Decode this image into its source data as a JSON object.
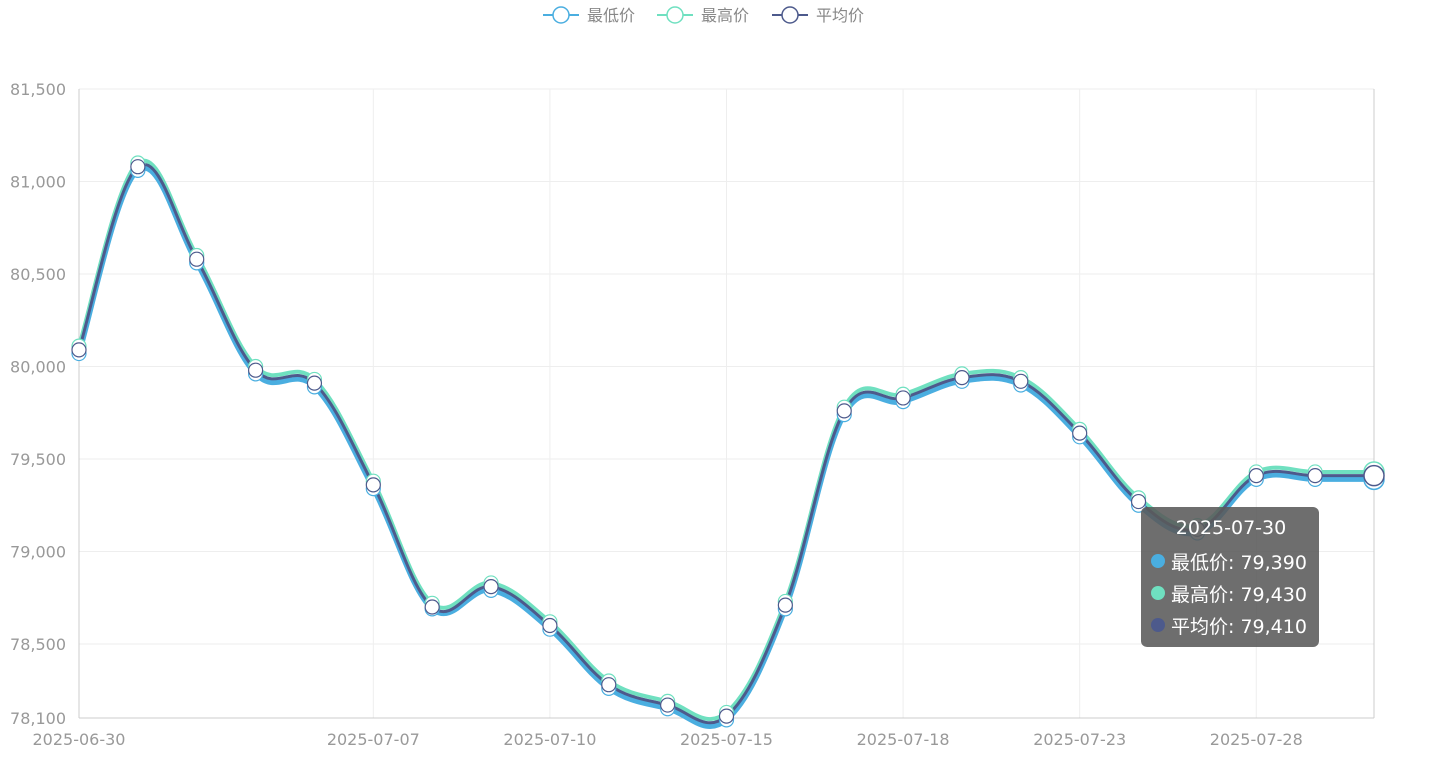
{
  "chart_data": {
    "type": "line",
    "smooth": true,
    "title": "",
    "xlabel": "",
    "ylabel": "",
    "ylim": [
      78100,
      81500
    ],
    "yticks": [
      78100,
      78500,
      79000,
      79500,
      80000,
      80500,
      81000,
      81500
    ],
    "ytick_labels": [
      "78,100",
      "78,500",
      "79,000",
      "79,500",
      "80,000",
      "80,500",
      "81,000",
      "81,500"
    ],
    "x": [
      "2025-06-30",
      "2025-07-01",
      "2025-07-02",
      "2025-07-03",
      "2025-07-04",
      "2025-07-07",
      "2025-07-08",
      "2025-07-09",
      "2025-07-10",
      "2025-07-11",
      "2025-07-14",
      "2025-07-15",
      "2025-07-16",
      "2025-07-17",
      "2025-07-18",
      "2025-07-21",
      "2025-07-22",
      "2025-07-23",
      "2025-07-24",
      "2025-07-25",
      "2025-07-28",
      "2025-07-29",
      "2025-07-30"
    ],
    "xtick_labels": [
      "2025-06-30",
      "2025-07-07",
      "2025-07-10",
      "2025-07-15",
      "2025-07-18",
      "2025-07-23",
      "2025-07-28"
    ],
    "grid": true,
    "legend_position": "top-center",
    "series": [
      {
        "name": "最低价",
        "color": "#4aaee0",
        "values": [
          80070,
          81060,
          80560,
          79960,
          79890,
          79340,
          78690,
          78790,
          78580,
          78260,
          78150,
          78090,
          78690,
          79740,
          79810,
          79920,
          79900,
          79620,
          79250,
          79100,
          79390,
          79390,
          79390
        ]
      },
      {
        "name": "最高价",
        "color": "#6fe0c0",
        "values": [
          80110,
          81100,
          80600,
          80000,
          79930,
          79380,
          78720,
          78830,
          78620,
          78300,
          78190,
          78130,
          78730,
          79780,
          79850,
          79960,
          79940,
          79660,
          79290,
          79140,
          79430,
          79430,
          79430
        ]
      },
      {
        "name": "平均价",
        "color": "#4d5a8c",
        "values": [
          80090,
          81080,
          80580,
          79980,
          79910,
          79360,
          78700,
          78810,
          78600,
          78280,
          78170,
          78110,
          78710,
          79760,
          79830,
          79940,
          79920,
          79640,
          79270,
          79120,
          79410,
          79410,
          79410
        ]
      }
    ],
    "tooltip": {
      "date": "2025-07-30",
      "rows": [
        {
          "label": "最低价: 79,390",
          "color": "#4aaee0"
        },
        {
          "label": "最高价: 79,430",
          "color": "#6fe0c0"
        },
        {
          "label": "平均价: 79,410",
          "color": "#4d5a8c"
        }
      ]
    }
  }
}
